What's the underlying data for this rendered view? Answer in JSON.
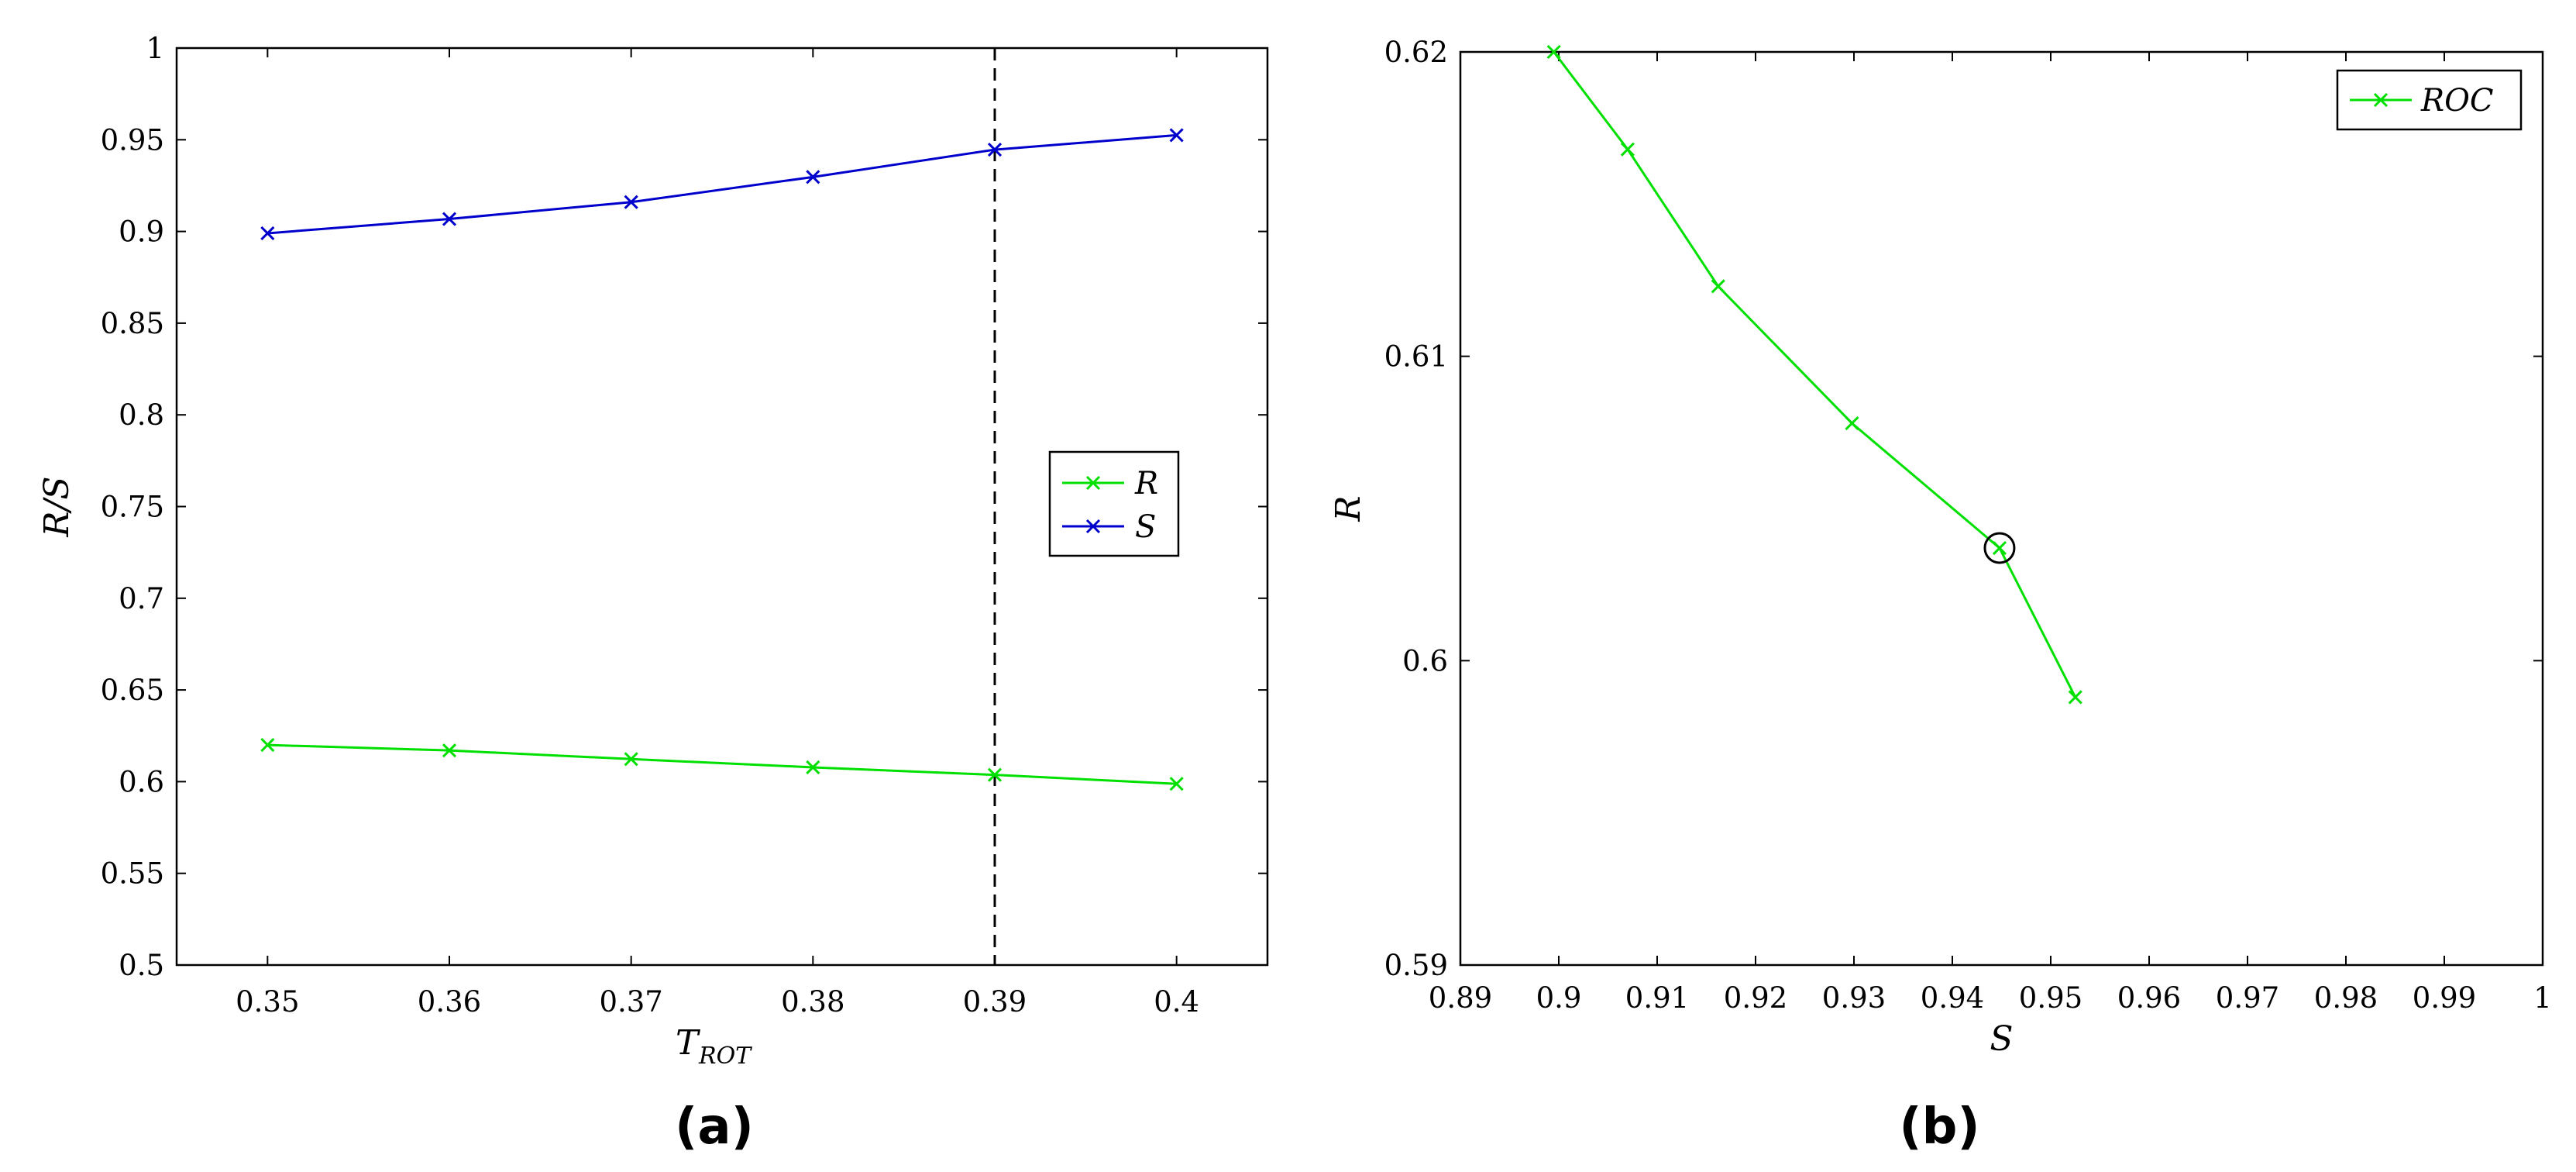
{
  "chart_data": [
    {
      "type": "line",
      "caption": "(a)",
      "xlabel_main": "T",
      "xlabel_sub": "ROT",
      "ylabel": "R/S",
      "xlim": [
        0.345,
        0.405
      ],
      "ylim": [
        0.5,
        1.0
      ],
      "xticks": [
        "0.35",
        "0.36",
        "0.37",
        "0.38",
        "0.39",
        "0.4"
      ],
      "yticks": [
        "0.5",
        "0.55",
        "0.6",
        "0.65",
        "0.7",
        "0.75",
        "0.8",
        "0.85",
        "0.9",
        "0.95",
        "1"
      ],
      "x": [
        0.35,
        0.36,
        0.37,
        0.38,
        0.39,
        0.4
      ],
      "series": [
        {
          "name": "R",
          "color": "#00e000",
          "values": [
            0.62,
            0.617,
            0.6123,
            0.6078,
            0.6037,
            0.5988
          ]
        },
        {
          "name": "S",
          "color": "#0000cc",
          "values": [
            0.899,
            0.9068,
            0.916,
            0.9297,
            0.9446,
            0.9525
          ]
        }
      ],
      "vline_x": 0.39,
      "legend": "center-right",
      "grid": false
    },
    {
      "type": "line",
      "caption": "(b)",
      "xlabel": "S",
      "ylabel": "R",
      "xlim": [
        0.89,
        1.0
      ],
      "ylim": [
        0.59,
        0.62
      ],
      "xticks": [
        "0.89",
        "0.9",
        "0.91",
        "0.92",
        "0.93",
        "0.94",
        "0.95",
        "0.96",
        "0.97",
        "0.98",
        "0.99",
        "1"
      ],
      "yticks": [
        "0.59",
        "0.6",
        "0.61",
        "0.62"
      ],
      "series": [
        {
          "name": "ROC",
          "color": "#00e000",
          "x": [
            0.8995,
            0.907,
            0.9162,
            0.9298,
            0.9448,
            0.9525
          ],
          "y": [
            0.62,
            0.6168,
            0.6123,
            0.6078,
            0.6037,
            0.5988
          ]
        }
      ],
      "highlight_point": {
        "x": 0.9448,
        "y": 0.6037
      },
      "legend": "top-right",
      "grid": false
    }
  ]
}
